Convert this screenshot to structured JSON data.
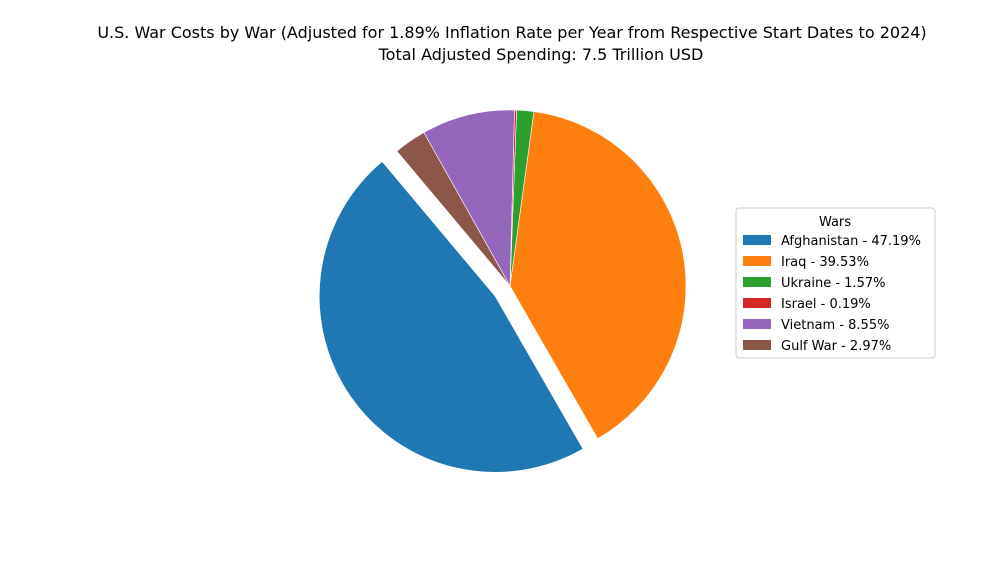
{
  "chart_data": {
    "type": "pie",
    "title": "U.S. War Costs by War (Adjusted for 1.89% Inflation Rate per Year from Respective Start Dates to 2024)",
    "subtitle": "Total Adjusted Spending: 7.5 Trillion USD",
    "legend_title": "Wars",
    "legend_position": "right",
    "slices": [
      {
        "label": "Afghanistan - 47.19%",
        "value": 47.19,
        "color": "#1f77b4",
        "exploded": true
      },
      {
        "label": "Iraq - 39.53%",
        "value": 39.53,
        "color": "#ff7f0e",
        "exploded": false
      },
      {
        "label": "Ukraine - 1.57%",
        "value": 1.57,
        "color": "#2ca02c",
        "exploded": false
      },
      {
        "label": "Israel - 0.19%",
        "value": 0.19,
        "color": "#d62728",
        "exploded": false
      },
      {
        "label": "Vietnam - 8.55%",
        "value": 8.55,
        "color": "#9467bd",
        "exploded": false
      },
      {
        "label": "Gulf War - 2.97%",
        "value": 2.97,
        "color": "#8c564b",
        "exploded": false
      }
    ]
  }
}
